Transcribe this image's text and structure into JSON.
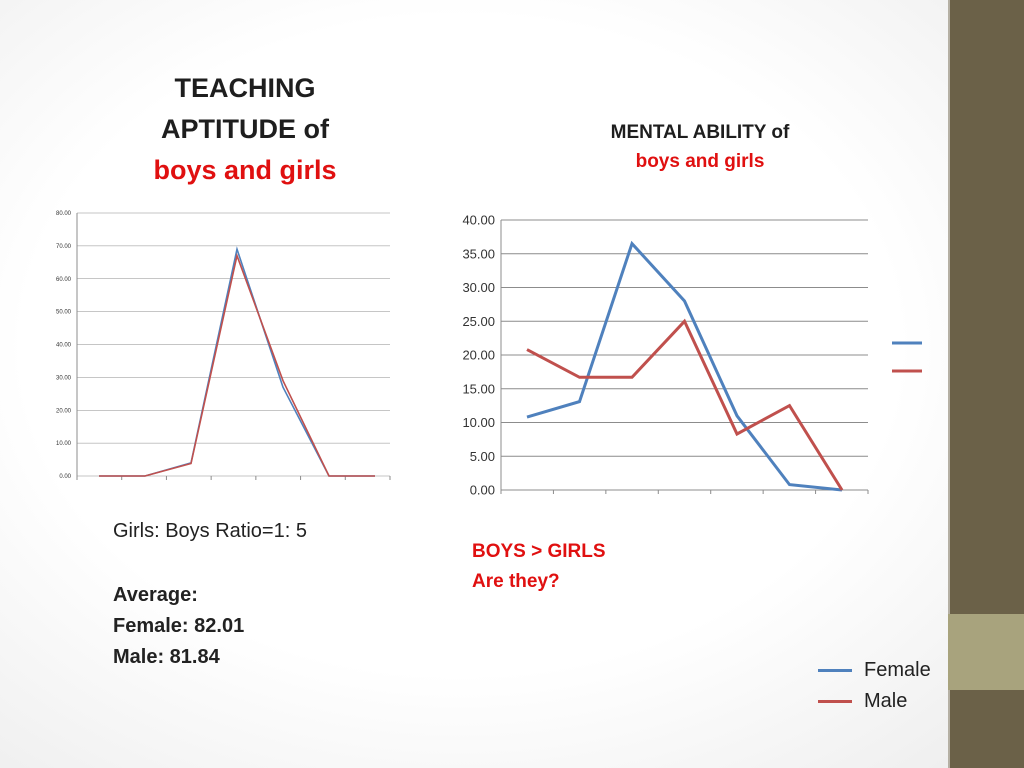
{
  "slide": {
    "left_title": {
      "line1": "TEACHING",
      "line2": "APTITUDE of",
      "line3": "boys and girls"
    },
    "right_title": {
      "line1": "MENTAL ABILITY of",
      "line2": "boys and girls"
    },
    "ratio_text": "Girls: Boys Ratio=1: 5",
    "average": {
      "label": "Average:",
      "female": "Female: 82.01",
      "male": "Male: 81.84"
    },
    "boys_girls": {
      "line1": "BOYS > GIRLS",
      "line2": "Are they?"
    },
    "legend": [
      {
        "name": "Female",
        "color": "#4f81bd"
      },
      {
        "name": "Male",
        "color": "#c0504d"
      }
    ]
  },
  "chart_data": [
    {
      "type": "line",
      "ylim": [
        0,
        80
      ],
      "yticks": [
        "0.00",
        "10.00",
        "20.00",
        "30.00",
        "40.00",
        "50.00",
        "60.00",
        "70.00",
        "80.00"
      ],
      "x": [
        1,
        2,
        3,
        4,
        5,
        6,
        7
      ],
      "grid": true,
      "series": [
        {
          "color": "#4f81bd",
          "values": [
            0,
            0,
            4,
            69,
            27,
            0,
            0
          ]
        },
        {
          "color": "#c0504d",
          "values": [
            0,
            0,
            3.8,
            67,
            29,
            0,
            0
          ]
        }
      ]
    },
    {
      "type": "line",
      "ylim": [
        0,
        40
      ],
      "yticks": [
        "0.00",
        "5.00",
        "10.00",
        "15.00",
        "20.00",
        "25.00",
        "30.00",
        "35.00",
        "40.00"
      ],
      "x": [
        1,
        2,
        3,
        4,
        5,
        6,
        7
      ],
      "grid": true,
      "series": [
        {
          "color": "#4f81bd",
          "values": [
            10.8,
            13.1,
            36.5,
            28,
            11,
            0.8,
            0
          ]
        },
        {
          "color": "#c0504d",
          "values": [
            20.8,
            16.7,
            16.7,
            25,
            8.3,
            12.5,
            0
          ]
        }
      ]
    }
  ]
}
